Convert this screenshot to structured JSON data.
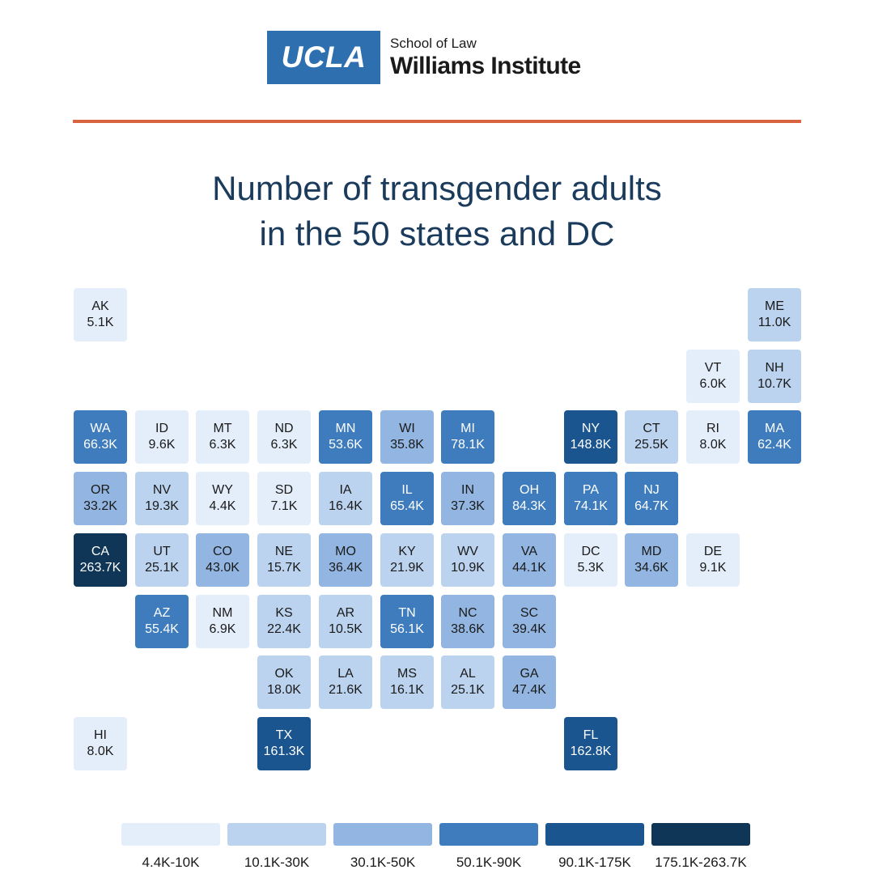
{
  "logo": {
    "mark": "UCLA",
    "line1": "School of Law",
    "line2": "Williams Institute"
  },
  "title_lines": [
    "Number of transgender adults",
    "in the 50 states and DC"
  ],
  "colors": {
    "bin1": "#e4eefa",
    "bin2": "#bcd3ef",
    "bin3": "#92b6e1",
    "bin4": "#3e7cbd",
    "bin5": "#1b5590",
    "bin6": "#0f3656",
    "rule": "#d9633f"
  },
  "legend": [
    {
      "label": "4.4K-10K",
      "bin": 1
    },
    {
      "label": "10.1K-30K",
      "bin": 2
    },
    {
      "label": "30.1K-50K",
      "bin": 3
    },
    {
      "label": "50.1K-90K",
      "bin": 4
    },
    {
      "label": "90.1K-175K",
      "bin": 5
    },
    {
      "label": "175.1K-263.7K",
      "bin": 6
    }
  ],
  "states": [
    {
      "abbr": "AK",
      "value": "5.1K",
      "bin": 1
    },
    {
      "abbr": "ME",
      "value": "11.0K",
      "bin": 2
    },
    {
      "abbr": "VT",
      "value": "6.0K",
      "bin": 1
    },
    {
      "abbr": "NH",
      "value": "10.7K",
      "bin": 2
    },
    {
      "abbr": "WA",
      "value": "66.3K",
      "bin": 4
    },
    {
      "abbr": "ID",
      "value": "9.6K",
      "bin": 1
    },
    {
      "abbr": "MT",
      "value": "6.3K",
      "bin": 1
    },
    {
      "abbr": "ND",
      "value": "6.3K",
      "bin": 1
    },
    {
      "abbr": "MN",
      "value": "53.6K",
      "bin": 4
    },
    {
      "abbr": "WI",
      "value": "35.8K",
      "bin": 3
    },
    {
      "abbr": "MI",
      "value": "78.1K",
      "bin": 4
    },
    {
      "abbr": "NY",
      "value": "148.8K",
      "bin": 5
    },
    {
      "abbr": "CT",
      "value": "25.5K",
      "bin": 2
    },
    {
      "abbr": "RI",
      "value": "8.0K",
      "bin": 1
    },
    {
      "abbr": "MA",
      "value": "62.4K",
      "bin": 4
    },
    {
      "abbr": "OR",
      "value": "33.2K",
      "bin": 3
    },
    {
      "abbr": "NV",
      "value": "19.3K",
      "bin": 2
    },
    {
      "abbr": "WY",
      "value": "4.4K",
      "bin": 1
    },
    {
      "abbr": "SD",
      "value": "7.1K",
      "bin": 1
    },
    {
      "abbr": "IA",
      "value": "16.4K",
      "bin": 2
    },
    {
      "abbr": "IL",
      "value": "65.4K",
      "bin": 4
    },
    {
      "abbr": "IN",
      "value": "37.3K",
      "bin": 3
    },
    {
      "abbr": "OH",
      "value": "84.3K",
      "bin": 4
    },
    {
      "abbr": "PA",
      "value": "74.1K",
      "bin": 4
    },
    {
      "abbr": "NJ",
      "value": "64.7K",
      "bin": 4
    },
    {
      "abbr": "CA",
      "value": "263.7K",
      "bin": 6
    },
    {
      "abbr": "UT",
      "value": "25.1K",
      "bin": 2
    },
    {
      "abbr": "CO",
      "value": "43.0K",
      "bin": 3
    },
    {
      "abbr": "NE",
      "value": "15.7K",
      "bin": 2
    },
    {
      "abbr": "MO",
      "value": "36.4K",
      "bin": 3
    },
    {
      "abbr": "KY",
      "value": "21.9K",
      "bin": 2
    },
    {
      "abbr": "WV",
      "value": "10.9K",
      "bin": 2
    },
    {
      "abbr": "VA",
      "value": "44.1K",
      "bin": 3
    },
    {
      "abbr": "DC",
      "value": "5.3K",
      "bin": 1
    },
    {
      "abbr": "MD",
      "value": "34.6K",
      "bin": 3
    },
    {
      "abbr": "DE",
      "value": "9.1K",
      "bin": 1
    },
    {
      "abbr": "AZ",
      "value": "55.4K",
      "bin": 4
    },
    {
      "abbr": "NM",
      "value": "6.9K",
      "bin": 1
    },
    {
      "abbr": "KS",
      "value": "22.4K",
      "bin": 2
    },
    {
      "abbr": "AR",
      "value": "10.5K",
      "bin": 2
    },
    {
      "abbr": "TN",
      "value": "56.1K",
      "bin": 4
    },
    {
      "abbr": "NC",
      "value": "38.6K",
      "bin": 3
    },
    {
      "abbr": "SC",
      "value": "39.4K",
      "bin": 3
    },
    {
      "abbr": "OK",
      "value": "18.0K",
      "bin": 2
    },
    {
      "abbr": "LA",
      "value": "21.6K",
      "bin": 2
    },
    {
      "abbr": "MS",
      "value": "16.1K",
      "bin": 2
    },
    {
      "abbr": "AL",
      "value": "25.1K",
      "bin": 2
    },
    {
      "abbr": "GA",
      "value": "47.4K",
      "bin": 3
    },
    {
      "abbr": "HI",
      "value": "8.0K",
      "bin": 1
    },
    {
      "abbr": "TX",
      "value": "161.3K",
      "bin": 5
    },
    {
      "abbr": "FL",
      "value": "162.8K",
      "bin": 5
    }
  ]
}
